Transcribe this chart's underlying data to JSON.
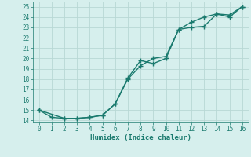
{
  "line1_x": [
    0,
    1,
    2,
    3,
    4,
    5,
    6,
    7,
    8,
    9,
    10,
    11,
    12,
    13,
    14,
    15,
    16
  ],
  "line1_y": [
    15.0,
    14.3,
    14.2,
    14.2,
    14.3,
    14.5,
    15.6,
    18.0,
    19.3,
    20.0,
    20.2,
    22.8,
    23.5,
    24.0,
    24.3,
    24.0,
    25.0
  ],
  "line2_x": [
    0,
    2,
    3,
    4,
    5,
    6,
    7,
    8,
    9,
    10,
    11,
    12,
    13,
    14,
    15,
    16
  ],
  "line2_y": [
    15.0,
    14.2,
    14.2,
    14.3,
    14.5,
    15.6,
    18.1,
    19.8,
    19.5,
    20.0,
    22.8,
    23.0,
    23.1,
    24.3,
    24.2,
    25.0
  ],
  "color": "#1a7a6e",
  "marker": "+",
  "marker_size": 4,
  "xlabel": "Humidex (Indice chaleur)",
  "xlim": [
    -0.5,
    16.5
  ],
  "ylim": [
    13.8,
    25.5
  ],
  "yticks": [
    14,
    15,
    16,
    17,
    18,
    19,
    20,
    21,
    22,
    23,
    24,
    25
  ],
  "xticks": [
    0,
    1,
    2,
    3,
    4,
    5,
    6,
    7,
    8,
    9,
    10,
    11,
    12,
    13,
    14,
    15,
    16
  ],
  "background_color": "#d6efed",
  "grid_color": "#b8d8d5",
  "line_width": 1.0
}
